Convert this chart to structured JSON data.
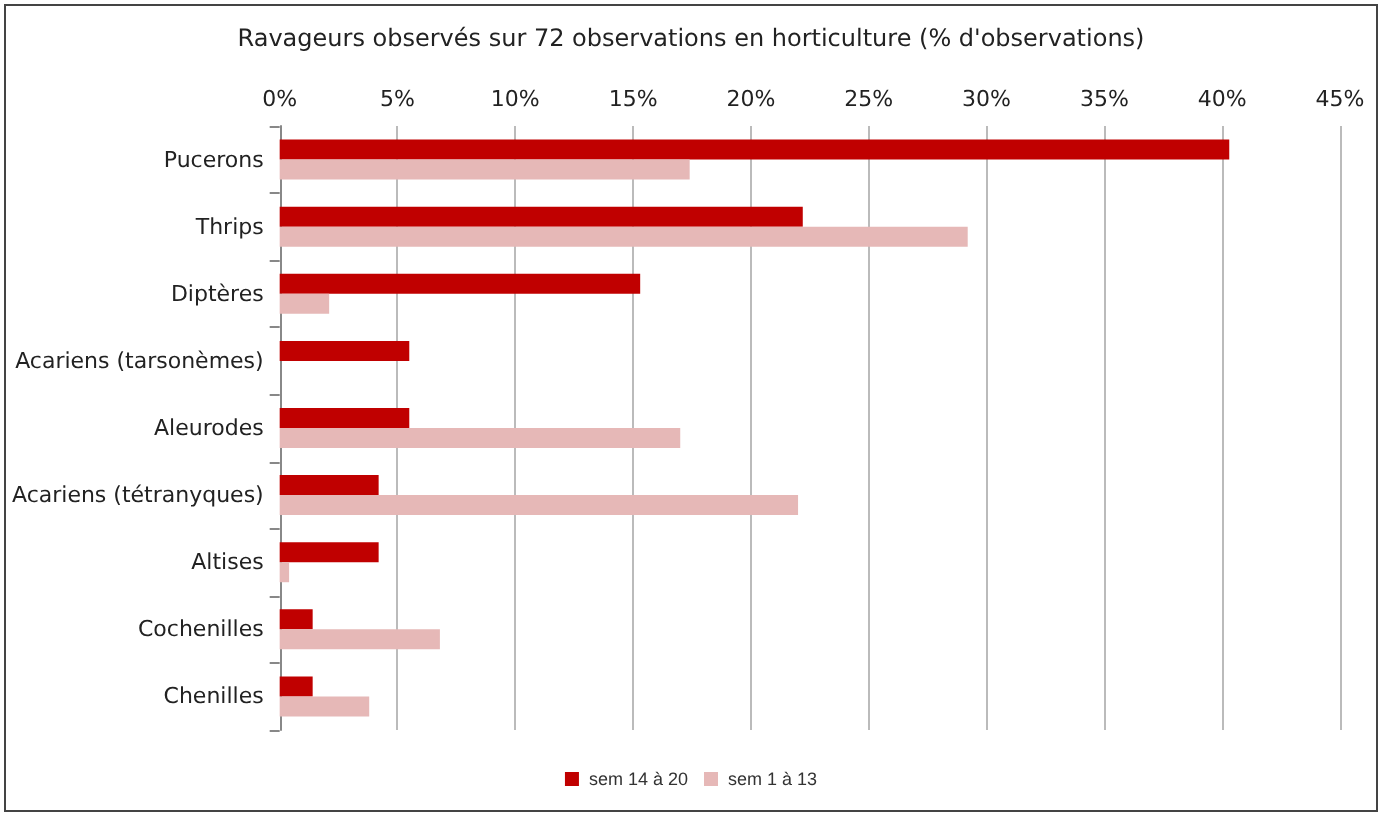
{
  "chart_data": {
    "type": "bar",
    "orientation": "horizontal",
    "title": "Ravageurs observés sur 72 observations en horticulture (% d'observations)",
    "categories": [
      "Pucerons",
      "Thrips",
      "Diptères",
      "Acariens (tarsonèmes)",
      "Aleurodes",
      "Acariens (tétranyques)",
      "Altises",
      "Cochenilles",
      "Chenilles"
    ],
    "series": [
      {
        "name": "sem 14 à 20",
        "color": "#c00000",
        "values": [
          40.3,
          22.2,
          15.3,
          5.5,
          5.5,
          4.2,
          4.2,
          1.4,
          1.4
        ]
      },
      {
        "name": "sem 1 à 13",
        "color": "#e6b8b7",
        "values": [
          17.4,
          29.2,
          2.1,
          0,
          17.0,
          22.0,
          0.4,
          6.8,
          3.8
        ]
      }
    ],
    "xlim": [
      0,
      45
    ],
    "xticks": [
      {
        "value": 0,
        "label": "0%"
      },
      {
        "value": 5,
        "label": "5%"
      },
      {
        "value": 10,
        "label": "10%"
      },
      {
        "value": 15,
        "label": "15%"
      },
      {
        "value": 20,
        "label": "20%"
      },
      {
        "value": 25,
        "label": "25%"
      },
      {
        "value": 30,
        "label": "30%"
      },
      {
        "value": 35,
        "label": "35%"
      },
      {
        "value": 40,
        "label": "40%"
      },
      {
        "value": 45,
        "label": "45%"
      }
    ],
    "grid": "x",
    "legend": "bottom"
  }
}
